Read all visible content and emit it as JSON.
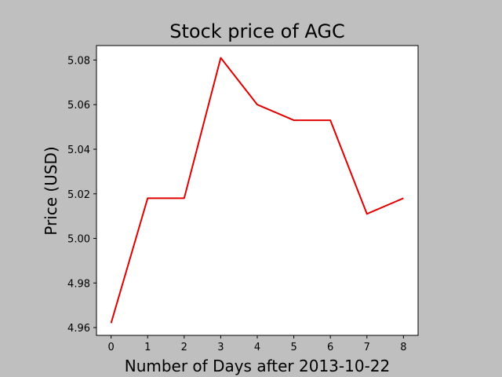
{
  "chart_data": {
    "type": "line",
    "title": "Stock price of AGC",
    "xlabel": "Number of Days after 2013-10-22",
    "ylabel": "Price (USD)",
    "x": [
      0,
      1,
      2,
      3,
      4,
      5,
      6,
      7,
      8
    ],
    "series": [
      {
        "values": [
          4.962,
          5.018,
          5.018,
          5.081,
          5.06,
          5.053,
          5.053,
          5.011,
          5.018
        ],
        "color": "#e00000"
      }
    ],
    "xlim": [
      -0.4,
      8.4
    ],
    "ylim": [
      4.9565,
      5.0865
    ],
    "xticks": [
      0,
      1,
      2,
      3,
      4,
      5,
      6,
      7,
      8
    ],
    "yticks": [
      "4.96",
      "4.98",
      "5.00",
      "5.02",
      "5.04",
      "5.06",
      "5.08"
    ],
    "grid": false,
    "colors": {
      "background": "#bfbfbf",
      "plot_area": "#ffffff",
      "line": "#e00000"
    }
  }
}
